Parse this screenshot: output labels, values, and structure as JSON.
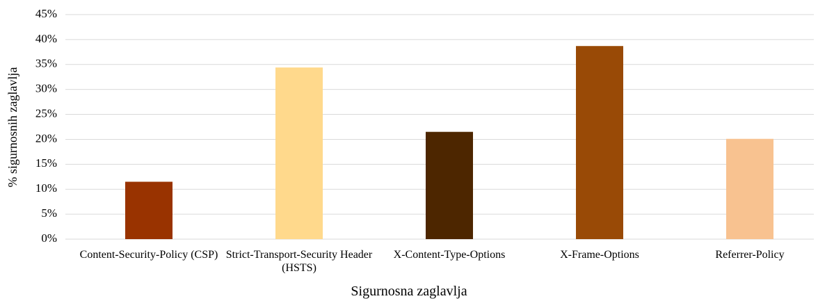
{
  "chart_data": {
    "type": "bar",
    "x_label": "Sigurnosna zaglavlja",
    "y_label": "% sigurnosnih zaglavlja",
    "categories": [
      "Content-Security-Policy (CSP)",
      "Strict-Transport-Security Header (HSTS)",
      "X-Content-Type-Options",
      "X-Frame-Options",
      "Referrer-Policy"
    ],
    "values": [
      11.5,
      34.4,
      21.5,
      38.7,
      20.1
    ],
    "colors": [
      "#993300",
      "#ffd98c",
      "#4d2600",
      "#994a06",
      "#f8c290"
    ],
    "ylim": [
      0,
      45
    ],
    "yticks": [
      {
        "value": 0,
        "label": "0%"
      },
      {
        "value": 5,
        "label": "5%"
      },
      {
        "value": 10,
        "label": "10%"
      },
      {
        "value": 15,
        "label": "15%"
      },
      {
        "value": 20,
        "label": "20%"
      },
      {
        "value": 25,
        "label": "25%"
      },
      {
        "value": 30,
        "label": "30%"
      },
      {
        "value": 35,
        "label": "35%"
      },
      {
        "value": 40,
        "label": "40%"
      },
      {
        "value": 45,
        "label": "45%"
      }
    ],
    "grid": true
  }
}
